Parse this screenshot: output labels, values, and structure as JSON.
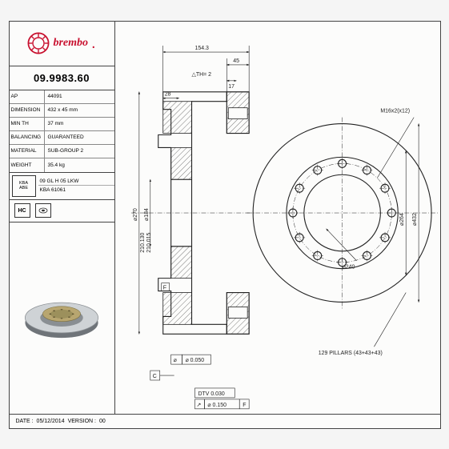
{
  "brand": "brembo",
  "part_number": "09.9983.60",
  "specs": [
    {
      "k": "AP",
      "v": "44091"
    },
    {
      "k": "DIMENSION",
      "v": "432 x 45 mm"
    },
    {
      "k": "MIN TH",
      "v": "37 mm"
    },
    {
      "k": "BALANCING",
      "v": "GUARANTEED"
    },
    {
      "k": "MATERIAL",
      "v": "SUB-GROUP 2"
    },
    {
      "k": "WEIGHT",
      "v": "35.4 kg"
    }
  ],
  "cert": {
    "badge_l1": "KBA",
    "badge_l2": "ABE",
    "line1": "09 GL H 05 LKW",
    "line2": "KBA 61061"
  },
  "icons": {
    "hc": "HC",
    "pvt": "PVT"
  },
  "footer": {
    "date_label": "DATE :",
    "date": "05/12/2014",
    "ver_label": "VERSION :",
    "ver": "00"
  },
  "dims": {
    "top_w": "154.3",
    "top_off": "45",
    "th": "△TH= 2",
    "t17": "17",
    "t28": "28",
    "d270": "⌀270",
    "d184": "⌀184",
    "r210a": "210.130",
    "r210b": "210.015",
    "thread": "M16x2(x12)",
    "d240": "⌀240",
    "d264": "⌀264",
    "d432": "⌀432",
    "flat": "⌀ 0.050",
    "dtv": "DTV 0.030",
    "runout": "⌀ 0.150",
    "f": "F",
    "c": "C",
    "pillars": "129 PILLARS (43+43+43)"
  },
  "colors": {
    "brand": "#c8102e",
    "line": "#222222",
    "bg": "#fcfcfb",
    "disc_face": "#cfd3d6",
    "disc_edge": "#8a8f93",
    "disc_dark": "#6f7479",
    "hub": "#b8a670"
  }
}
